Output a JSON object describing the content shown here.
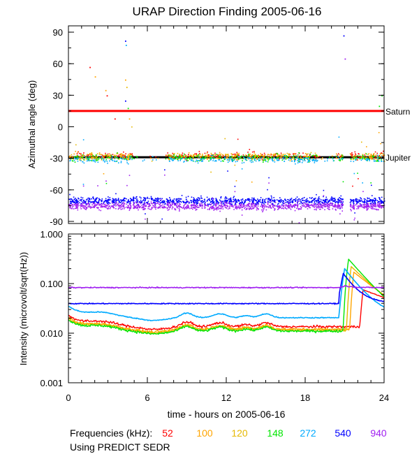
{
  "title": "URAP Direction Finding  2005-06-16",
  "footer": {
    "frequencies_label": "Frequencies (kHz):",
    "source_note": "Using PREDICT SEDR"
  },
  "chart_data": [
    {
      "type": "scatter",
      "title": "URAP Direction Finding  2005-06-16",
      "xlabel": "time - hours on 2005-06-16",
      "ylabel": "Azimuthal angle (deg)",
      "xlim": [
        0,
        24
      ],
      "ylim": [
        -92,
        96
      ],
      "x_ticks": [
        "0",
        "6",
        "12",
        "18",
        "24"
      ],
      "x_tick_values": [
        0,
        6,
        12,
        18,
        24
      ],
      "y_ticks": [
        "90",
        "60",
        "30",
        "0",
        "-30",
        "-60",
        "-90"
      ],
      "y_tick_values": [
        90,
        60,
        30,
        0,
        -30,
        -60,
        -90
      ],
      "reference_lines": [
        {
          "name": "Saturn",
          "value": 15,
          "color": "#ff0000"
        },
        {
          "name": "Jupiter",
          "value": -29,
          "color": "#000000"
        }
      ],
      "series": [
        {
          "name": "52",
          "color": "#ff0000",
          "center": -27,
          "spread": 6
        },
        {
          "name": "100",
          "color": "#ffa500",
          "center": -28,
          "spread": 6
        },
        {
          "name": "120",
          "color": "#e6b800",
          "center": -28,
          "spread": 6
        },
        {
          "name": "148",
          "color": "#00e600",
          "center": -29,
          "spread": 6
        },
        {
          "name": "272",
          "color": "#00aaff",
          "center": -31,
          "spread": 5
        },
        {
          "name": "540",
          "color": "#0000ff",
          "center": -70,
          "spread": 6
        },
        {
          "name": "940",
          "color": "#a020f0",
          "center": -75,
          "spread": 6
        }
      ]
    },
    {
      "type": "line",
      "xlabel": "time - hours on 2005-06-16",
      "ylabel": "Intensity (microvolt/sqrt(Hz))",
      "xlim": [
        0,
        24
      ],
      "yscale": "log",
      "ylim": [
        0.001,
        1.0
      ],
      "x_ticks": [
        "0",
        "6",
        "12",
        "18",
        "24"
      ],
      "x_tick_values": [
        0,
        6,
        12,
        18,
        24
      ],
      "y_ticks": [
        "1.000",
        "0.100",
        "0.010",
        "0.001"
      ],
      "y_tick_values": [
        1.0,
        0.1,
        0.01,
        0.001
      ],
      "series": [
        {
          "name": "52",
          "color": "#ff0000",
          "baseline": 0.0135,
          "peak": 0.075,
          "peak_time": 22.4
        },
        {
          "name": "100",
          "color": "#ffa500",
          "baseline": 0.012,
          "peak": 0.17,
          "peak_time": 21.7
        },
        {
          "name": "120",
          "color": "#e6b800",
          "baseline": 0.0115,
          "peak": 0.22,
          "peak_time": 21.5
        },
        {
          "name": "148",
          "color": "#00e600",
          "baseline": 0.011,
          "peak": 0.31,
          "peak_time": 21.3
        },
        {
          "name": "272",
          "color": "#00aaff",
          "baseline": 0.0205,
          "peak": 0.2,
          "peak_time": 21.0
        },
        {
          "name": "540",
          "color": "#0000ff",
          "baseline": 0.0395,
          "peak": 0.16,
          "peak_time": 20.9
        },
        {
          "name": "940",
          "color": "#a020f0",
          "baseline": 0.083,
          "peak": 0.09,
          "peak_time": 21.0
        }
      ]
    }
  ]
}
